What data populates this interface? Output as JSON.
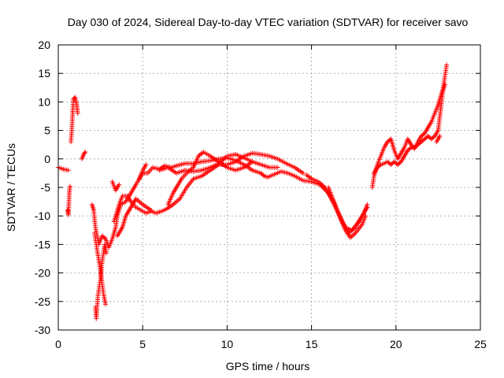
{
  "chart_data": {
    "type": "scatter",
    "title": "Day 030 of 2024, Sidereal Day-to-day VTEC variation (SDTVAR) for receiver savo",
    "xlabel": "GPS time / hours",
    "ylabel": "SDTVAR / TECUs",
    "xlim": [
      0,
      25
    ],
    "ylim": [
      -30,
      20
    ],
    "xticks": [
      "0",
      "5",
      "10",
      "15",
      "20",
      "25"
    ],
    "yticks": [
      "20",
      "15",
      "10",
      "5",
      "0",
      "-5",
      "-10",
      "-15",
      "-20",
      "-25",
      "-30"
    ],
    "grid": true,
    "marker": "plus",
    "color": "#ff0000",
    "series": [
      {
        "name": "SDTVAR",
        "segments": [
          [
            [
              0.0,
              -1.5
            ],
            [
              0.3,
              -1.8
            ],
            [
              0.6,
              -2.0
            ]
          ],
          [
            [
              0.55,
              -9.0
            ],
            [
              0.6,
              -9.8
            ],
            [
              0.65,
              -6.0
            ],
            [
              0.7,
              -4.8
            ]
          ],
          [
            [
              0.75,
              3.0
            ],
            [
              0.8,
              5.0
            ],
            [
              0.85,
              8.0
            ],
            [
              0.9,
              10.5
            ],
            [
              1.0,
              10.8
            ],
            [
              1.1,
              9.5
            ],
            [
              1.15,
              8.0
            ]
          ],
          [
            [
              1.4,
              0.0
            ],
            [
              1.5,
              0.8
            ],
            [
              1.6,
              1.2
            ]
          ],
          [
            [
              2.0,
              -8.0
            ],
            [
              2.1,
              -9.0
            ],
            [
              2.2,
              -12.0
            ],
            [
              2.4,
              -15.0
            ],
            [
              2.6,
              -13.5
            ],
            [
              2.8,
              -14.0
            ],
            [
              3.0,
              -15.5
            ],
            [
              3.2,
              -14.0
            ],
            [
              3.4,
              -12.0
            ],
            [
              3.5,
              -10.0
            ],
            [
              3.7,
              -8.0
            ],
            [
              4.0,
              -7.5
            ],
            [
              4.3,
              -6.0
            ],
            [
              4.6,
              -4.5
            ],
            [
              5.0,
              -2.5
            ],
            [
              5.3,
              -2.5
            ],
            [
              5.6,
              -1.5
            ],
            [
              6.0,
              -1.8
            ],
            [
              6.3,
              -1.2
            ],
            [
              6.7,
              -1.5
            ],
            [
              7.0,
              -1.2
            ],
            [
              7.5,
              -0.8
            ],
            [
              8.0,
              -0.8
            ],
            [
              8.5,
              -0.5
            ],
            [
              9.0,
              -0.3
            ],
            [
              9.5,
              0.0
            ],
            [
              10.0,
              0.2
            ],
            [
              10.5,
              -0.3
            ],
            [
              11.0,
              -1.0
            ],
            [
              11.5,
              -2.0
            ],
            [
              12.0,
              -2.5
            ],
            [
              12.2,
              -3.0
            ],
            [
              12.4,
              -3.2
            ],
            [
              12.8,
              -2.7
            ],
            [
              13.2,
              -2.2
            ],
            [
              13.6,
              -2.5
            ],
            [
              14.0,
              -3.0
            ],
            [
              14.5,
              -3.8
            ],
            [
              15.0,
              -4.0
            ],
            [
              15.5,
              -4.5
            ],
            [
              16.0,
              -6.0
            ],
            [
              16.5,
              -9.0
            ],
            [
              17.0,
              -12.5
            ],
            [
              17.3,
              -13.8
            ],
            [
              17.6,
              -13.0
            ],
            [
              18.0,
              -11.5
            ],
            [
              18.2,
              -10.0
            ]
          ],
          [
            [
              2.15,
              -13.0
            ],
            [
              2.3,
              -16.0
            ],
            [
              2.5,
              -19.5
            ],
            [
              2.6,
              -22.0
            ],
            [
              2.7,
              -24.0
            ],
            [
              2.8,
              -25.5
            ]
          ],
          [
            [
              2.2,
              -26.0
            ],
            [
              2.25,
              -28.0
            ],
            [
              2.35,
              -24.0
            ],
            [
              2.5,
              -21.0
            ],
            [
              2.6,
              -18.0
            ],
            [
              2.75,
              -15.0
            ],
            [
              2.85,
              -16.5
            ]
          ],
          [
            [
              3.3,
              -11.0
            ],
            [
              3.6,
              -8.0
            ],
            [
              3.8,
              -6.5
            ],
            [
              4.1,
              -6.5
            ],
            [
              4.3,
              -7.5
            ],
            [
              4.6,
              -8.5
            ],
            [
              4.9,
              -9.0
            ],
            [
              5.2,
              -9.5
            ],
            [
              5.5,
              -9.2
            ],
            [
              5.8,
              -9.5
            ],
            [
              6.1,
              -9.2
            ],
            [
              6.4,
              -8.8
            ],
            [
              6.8,
              -8.0
            ],
            [
              7.2,
              -7.0
            ],
            [
              7.6,
              -5.0
            ],
            [
              8.0,
              -3.5
            ],
            [
              8.5,
              -3.0
            ],
            [
              9.0,
              -2.0
            ],
            [
              9.5,
              -1.0
            ],
            [
              10.0,
              -1.0
            ],
            [
              10.5,
              -0.5
            ],
            [
              11.0,
              0.5
            ],
            [
              11.5,
              1.0
            ],
            [
              12.0,
              0.8
            ],
            [
              12.5,
              0.5
            ],
            [
              13.0,
              0.0
            ],
            [
              13.5,
              -0.8
            ],
            [
              14.0,
              -1.5
            ],
            [
              14.5,
              -2.5
            ]
          ],
          [
            [
              3.5,
              -13.5
            ],
            [
              3.8,
              -12.0
            ],
            [
              4.0,
              -10.0
            ],
            [
              4.3,
              -8.5
            ],
            [
              4.6,
              -7.0
            ],
            [
              5.0,
              -8.0
            ],
            [
              5.5,
              -9.0
            ]
          ],
          [
            [
              3.2,
              -4.0
            ],
            [
              3.4,
              -5.5
            ],
            [
              3.6,
              -4.5
            ]
          ],
          [
            [
              4.8,
              -3.5
            ],
            [
              5.0,
              -2.0
            ],
            [
              5.2,
              -1.0
            ]
          ],
          [
            [
              6.5,
              -8.0
            ],
            [
              6.8,
              -6.0
            ],
            [
              7.0,
              -5.0
            ],
            [
              7.3,
              -3.5
            ],
            [
              7.6,
              -2.5
            ],
            [
              8.0,
              -1.5
            ],
            [
              8.3,
              0.5
            ],
            [
              8.6,
              1.2
            ],
            [
              9.0,
              0.5
            ],
            [
              9.5,
              -0.5
            ],
            [
              10.0,
              -1.5
            ],
            [
              10.5,
              -2.0
            ],
            [
              11.0,
              -1.5
            ],
            [
              11.5,
              -0.5
            ],
            [
              12.0,
              -1.0
            ],
            [
              12.5,
              -1.5
            ],
            [
              13.0,
              -1.5
            ]
          ],
          [
            [
              6.0,
              -2.0
            ],
            [
              6.5,
              -1.5
            ],
            [
              7.0,
              -2.5
            ],
            [
              7.5,
              -2.0
            ],
            [
              8.0,
              -2.2
            ],
            [
              8.5,
              -2.0
            ],
            [
              9.0,
              -1.5
            ],
            [
              9.5,
              -0.8
            ],
            [
              10.0,
              0.5
            ],
            [
              10.5,
              0.8
            ],
            [
              11.0,
              0.2
            ],
            [
              11.5,
              -0.5
            ]
          ],
          [
            [
              14.7,
              -2.8
            ],
            [
              15.0,
              -3.5
            ],
            [
              15.4,
              -4.0
            ],
            [
              15.8,
              -5.0
            ],
            [
              16.2,
              -7.0
            ],
            [
              16.6,
              -9.5
            ],
            [
              17.0,
              -12.0
            ],
            [
              17.4,
              -12.5
            ],
            [
              17.8,
              -11.0
            ],
            [
              18.1,
              -9.5
            ],
            [
              18.3,
              -8.0
            ]
          ],
          [
            [
              16.0,
              -5.0
            ],
            [
              16.4,
              -8.0
            ],
            [
              16.8,
              -11.0
            ],
            [
              17.2,
              -13.0
            ],
            [
              17.6,
              -12.0
            ],
            [
              18.0,
              -10.0
            ],
            [
              18.3,
              -8.5
            ]
          ],
          [
            [
              18.6,
              -5.0
            ],
            [
              18.7,
              -3.0
            ],
            [
              18.9,
              -1.0
            ],
            [
              19.1,
              0.5
            ],
            [
              19.3,
              2.0
            ],
            [
              19.5,
              3.0
            ],
            [
              19.7,
              3.5
            ],
            [
              19.9,
              1.5
            ],
            [
              20.1,
              0.0
            ],
            [
              20.3,
              1.0
            ],
            [
              20.5,
              2.0
            ],
            [
              20.7,
              3.5
            ],
            [
              20.9,
              2.5
            ],
            [
              21.1,
              1.8
            ],
            [
              21.3,
              3.0
            ],
            [
              21.5,
              4.0
            ],
            [
              21.7,
              4.5
            ],
            [
              21.9,
              5.5
            ],
            [
              22.1,
              6.5
            ],
            [
              22.3,
              8.0
            ],
            [
              22.5,
              9.5
            ],
            [
              22.7,
              11.5
            ],
            [
              22.9,
              13.0
            ]
          ],
          [
            [
              18.7,
              -2.5
            ],
            [
              18.9,
              -1.5
            ],
            [
              19.1,
              -1.0
            ],
            [
              19.3,
              -0.8
            ],
            [
              19.5,
              -0.5
            ],
            [
              19.7,
              -1.0
            ],
            [
              19.9,
              -0.5
            ],
            [
              20.1,
              -1.0
            ],
            [
              20.3,
              -0.5
            ],
            [
              20.5,
              0.5
            ],
            [
              20.7,
              1.5
            ],
            [
              20.9,
              2.0
            ],
            [
              21.1,
              2.0
            ],
            [
              21.3,
              2.5
            ],
            [
              21.5,
              3.0
            ],
            [
              21.7,
              3.5
            ],
            [
              21.9,
              4.0
            ],
            [
              22.1,
              3.5
            ],
            [
              22.3,
              4.0
            ],
            [
              22.5,
              5.0
            ],
            [
              22.6,
              7.5
            ],
            [
              22.7,
              10.0
            ],
            [
              22.8,
              12.5
            ],
            [
              22.9,
              14.5
            ],
            [
              23.0,
              16.5
            ]
          ],
          [
            [
              22.4,
              3.0
            ],
            [
              22.5,
              3.5
            ],
            [
              22.6,
              4.0
            ]
          ]
        ]
      }
    ]
  }
}
